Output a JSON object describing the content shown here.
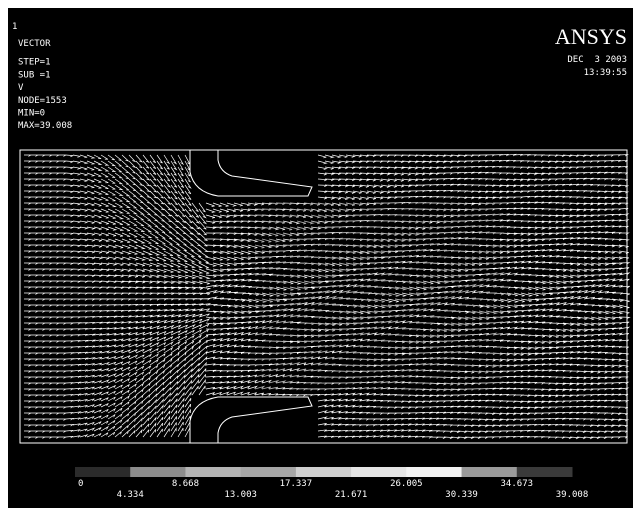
{
  "header": {
    "window": "1",
    "lines": [
      "VECTOR",
      "STEP=1",
      "SUB =1",
      "V",
      "NODE=1553",
      "MIN=0",
      "MAX=39.008"
    ]
  },
  "brand": {
    "logo": "ANSYS",
    "date": "DEC  3 2003",
    "time": "13:39:55"
  },
  "legend": {
    "labels": [
      "0",
      "4.334",
      "8.668",
      "13.003",
      "17.337",
      "21.671",
      "26.005",
      "30.339",
      "34.673",
      "39.008"
    ],
    "colors": [
      "#2b2b2b",
      "#8c8c8c",
      "#b4b4b4",
      "#a6a6a6",
      "#cfcfcf",
      "#e4e4e4",
      "#f2f2f2",
      "#9a9a9a",
      "#3a3a3a"
    ]
  }
}
